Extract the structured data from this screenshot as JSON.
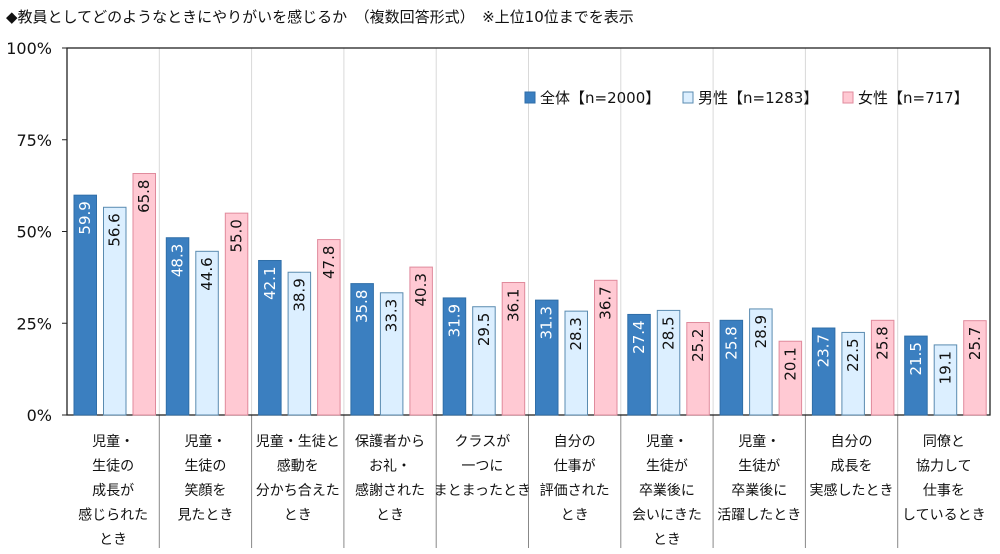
{
  "chart_data": {
    "type": "bar",
    "title": "◆教員としてどのようなときにやりがいを感じるか　（複数回答形式）　※上位10位までを表示",
    "categories": [
      [
        "児童・",
        "生徒の",
        "成長が",
        "感じられた",
        "とき"
      ],
      [
        "児童・",
        "生徒の",
        "笑顔を",
        "見たとき"
      ],
      [
        "児童・生徒と",
        "感動を",
        "分かち合えた",
        "とき"
      ],
      [
        "保護者から",
        "お礼・",
        "感謝された",
        "とき"
      ],
      [
        "クラスが",
        "一つに",
        "まとまったとき"
      ],
      [
        "自分の",
        "仕事が",
        "評価された",
        "とき"
      ],
      [
        "児童・",
        "生徒が",
        "卒業後に",
        "会いにきた",
        "とき"
      ],
      [
        "児童・",
        "生徒が",
        "卒業後に",
        "活躍したとき"
      ],
      [
        "自分の",
        "成長を",
        "実感したとき"
      ],
      [
        "同僚と",
        "協力して",
        "仕事を",
        "しているとき"
      ]
    ],
    "series": [
      {
        "name": "全体【n=2000】",
        "values": [
          59.9,
          48.3,
          42.1,
          35.8,
          31.9,
          31.3,
          27.4,
          25.8,
          23.7,
          21.5
        ],
        "color": "#3b7fc0",
        "stroke": "#2f6ea8",
        "text": "#ffffff"
      },
      {
        "name": "男性【n=1283】",
        "values": [
          56.6,
          44.6,
          38.9,
          33.3,
          29.5,
          28.3,
          28.5,
          28.9,
          22.5,
          19.1
        ],
        "color": "#dcefff",
        "stroke": "#5a8bb0",
        "text": "#111111"
      },
      {
        "name": "女性【n=717】",
        "values": [
          65.8,
          55.0,
          47.8,
          40.3,
          36.1,
          36.7,
          25.2,
          20.1,
          25.8,
          25.7
        ],
        "color": "#ffc9d3",
        "stroke": "#e08a9c",
        "text": "#111111"
      }
    ],
    "yticks": [
      "0%",
      "25%",
      "50%",
      "75%",
      "100%"
    ],
    "ylim": [
      0,
      100
    ],
    "grid": "vertical separators",
    "legend": "top-right",
    "value_label_orientation": "vertical"
  }
}
